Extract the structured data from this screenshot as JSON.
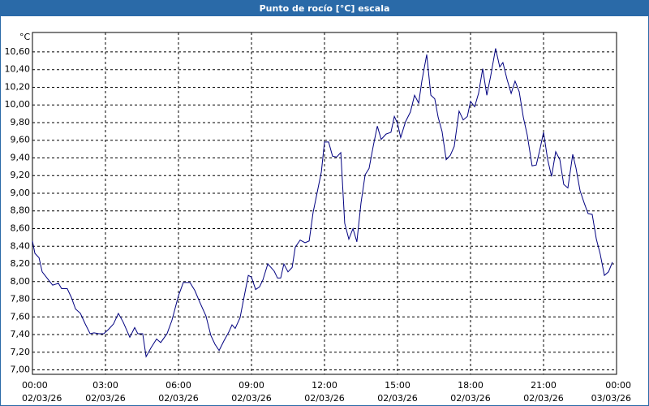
{
  "chart_data": {
    "type": "line",
    "title": "Punto de rocío [°C] escala",
    "y_unit": "°C",
    "xlim": [
      0,
      24
    ],
    "ylim": [
      6.95,
      10.82
    ],
    "grid": true,
    "xticks": [
      {
        "value": 0,
        "label": "00:00"
      },
      {
        "value": 3,
        "label": "03:00"
      },
      {
        "value": 6,
        "label": "06:00"
      },
      {
        "value": 9,
        "label": "09:00"
      },
      {
        "value": 12,
        "label": "12:00"
      },
      {
        "value": 15,
        "label": "15:00"
      },
      {
        "value": 18,
        "label": "18:00"
      },
      {
        "value": 21,
        "label": "21:00"
      },
      {
        "value": 24,
        "label": "00:00"
      }
    ],
    "xtick_dates": [
      "02/03/26",
      "02/03/26",
      "02/03/26",
      "02/03/26",
      "02/03/26",
      "02/03/26",
      "02/03/26",
      "02/03/26",
      "03/03/26"
    ],
    "yticks": [
      {
        "value": 7.0,
        "label": "7,00"
      },
      {
        "value": 7.2,
        "label": "7,20"
      },
      {
        "value": 7.4,
        "label": "7,40"
      },
      {
        "value": 7.6,
        "label": "7,60"
      },
      {
        "value": 7.8,
        "label": "7,80"
      },
      {
        "value": 8.0,
        "label": "8,00"
      },
      {
        "value": 8.2,
        "label": "8,20"
      },
      {
        "value": 8.4,
        "label": "8,40"
      },
      {
        "value": 8.6,
        "label": "8,60"
      },
      {
        "value": 8.8,
        "label": "8,80"
      },
      {
        "value": 9.0,
        "label": "9,00"
      },
      {
        "value": 9.2,
        "label": "9,20"
      },
      {
        "value": 9.4,
        "label": "9,40"
      },
      {
        "value": 9.6,
        "label": "9,60"
      },
      {
        "value": 9.8,
        "label": "9,80"
      },
      {
        "value": 10.0,
        "label": "10,00"
      },
      {
        "value": 10.2,
        "label": "10,20"
      },
      {
        "value": 10.4,
        "label": "10,40"
      },
      {
        "value": 10.6,
        "label": "10,60"
      }
    ],
    "series": [
      {
        "name": "Punto de rocío",
        "color": "#000080",
        "x": [
          0,
          0.1,
          0.27,
          0.4,
          0.6,
          0.83,
          1.07,
          1.2,
          1.43,
          1.6,
          1.77,
          1.97,
          2.17,
          2.37,
          2.53,
          2.73,
          2.93,
          3.13,
          3.33,
          3.53,
          3.73,
          4.0,
          4.2,
          4.33,
          4.53,
          4.67,
          4.87,
          5.1,
          5.27,
          5.53,
          5.73,
          6.0,
          6.2,
          6.47,
          6.67,
          6.87,
          7.13,
          7.33,
          7.5,
          7.67,
          7.87,
          8.07,
          8.2,
          8.33,
          8.53,
          8.67,
          8.87,
          9.0,
          9.17,
          9.33,
          9.47,
          9.67,
          9.93,
          10.07,
          10.2,
          10.33,
          10.5,
          10.67,
          10.8,
          11.0,
          11.2,
          11.37,
          11.53,
          11.7,
          11.87,
          12.0,
          12.17,
          12.33,
          12.5,
          12.67,
          12.83,
          13.0,
          13.17,
          13.33,
          13.5,
          13.67,
          13.83,
          14.0,
          14.17,
          14.33,
          14.53,
          14.73,
          14.87,
          15.0,
          15.13,
          15.33,
          15.53,
          15.7,
          15.87,
          16.0,
          16.2,
          16.37,
          16.53,
          16.67,
          16.83,
          17.0,
          17.17,
          17.33,
          17.53,
          17.7,
          17.87,
          18.0,
          18.17,
          18.33,
          18.5,
          18.67,
          18.83,
          19.03,
          19.2,
          19.33,
          19.5,
          19.67,
          19.83,
          20.0,
          20.17,
          20.33,
          20.53,
          20.7,
          20.83,
          21.0,
          21.17,
          21.33,
          21.5,
          21.67,
          21.83,
          22.0,
          22.2,
          22.33,
          22.5,
          22.67,
          22.83,
          23.0,
          23.17,
          23.33,
          23.5,
          23.67,
          23.83
        ],
        "values": [
          8.46,
          8.32,
          8.27,
          8.11,
          8.04,
          7.96,
          7.98,
          7.92,
          7.92,
          7.82,
          7.69,
          7.64,
          7.52,
          7.41,
          7.42,
          7.41,
          7.41,
          7.46,
          7.52,
          7.64,
          7.54,
          7.37,
          7.48,
          7.41,
          7.41,
          7.15,
          7.25,
          7.35,
          7.31,
          7.41,
          7.56,
          7.84,
          7.99,
          7.99,
          7.9,
          7.77,
          7.61,
          7.39,
          7.29,
          7.22,
          7.33,
          7.43,
          7.51,
          7.47,
          7.59,
          7.79,
          8.07,
          8.05,
          7.91,
          7.94,
          8.02,
          8.2,
          8.12,
          8.04,
          8.04,
          8.2,
          8.11,
          8.16,
          8.39,
          8.47,
          8.44,
          8.46,
          8.78,
          9.01,
          9.24,
          9.58,
          9.58,
          9.42,
          9.41,
          9.46,
          8.66,
          8.48,
          8.6,
          8.45,
          8.89,
          9.21,
          9.28,
          9.53,
          9.76,
          9.61,
          9.67,
          9.69,
          9.87,
          9.79,
          9.63,
          9.81,
          9.92,
          10.11,
          10.02,
          10.27,
          10.57,
          10.11,
          10.07,
          9.86,
          9.7,
          9.38,
          9.43,
          9.53,
          9.93,
          9.83,
          9.87,
          10.04,
          9.98,
          10.13,
          10.41,
          10.11,
          10.33,
          10.64,
          10.43,
          10.48,
          10.29,
          10.13,
          10.27,
          10.15,
          9.86,
          9.66,
          9.31,
          9.32,
          9.47,
          9.69,
          9.38,
          9.19,
          9.47,
          9.38,
          9.1,
          9.06,
          9.44,
          9.29,
          9.03,
          8.89,
          8.77,
          8.76,
          8.48,
          8.31,
          8.07,
          8.11,
          8.22
        ]
      }
    ]
  }
}
